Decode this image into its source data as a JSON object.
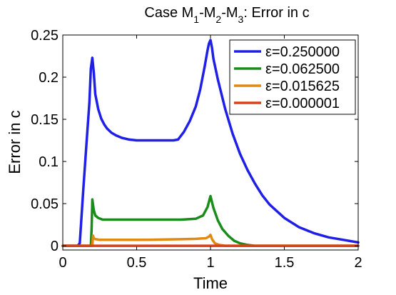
{
  "chart_data": {
    "type": "line",
    "title_parts": [
      {
        "text": "Case M",
        "sub": false
      },
      {
        "text": "1",
        "sub": true
      },
      {
        "text": "-M",
        "sub": false
      },
      {
        "text": "2",
        "sub": true
      },
      {
        "text": "-M",
        "sub": false
      },
      {
        "text": "3",
        "sub": true
      },
      {
        "text": ": Error in c",
        "sub": false
      }
    ],
    "xlabel": "Time",
    "ylabel": "Error in c",
    "xlim": [
      0,
      2
    ],
    "ylim": [
      -0.005,
      0.25
    ],
    "x_ticks": [
      "0",
      "0.5",
      "1",
      "1.5",
      "2"
    ],
    "x_tick_values": [
      0,
      0.5,
      1,
      1.5,
      2
    ],
    "y_ticks": [
      "0",
      "0.05",
      "0.1",
      "0.15",
      "0.2",
      "0.25"
    ],
    "y_tick_values": [
      0,
      0.05,
      0.1,
      0.15,
      0.2,
      0.25
    ],
    "grid": false,
    "legend_position": "top-right",
    "series": [
      {
        "name": "ε=0.250000",
        "color": "#1f1fe6",
        "x": [
          0,
          0.1,
          0.115,
          0.14,
          0.16,
          0.18,
          0.19,
          0.2,
          0.21,
          0.22,
          0.24,
          0.26,
          0.28,
          0.3,
          0.33,
          0.36,
          0.4,
          0.45,
          0.5,
          0.55,
          0.6,
          0.65,
          0.7,
          0.75,
          0.78,
          0.82,
          0.86,
          0.9,
          0.93,
          0.96,
          0.98,
          0.99,
          1.0,
          1.01,
          1.02,
          1.05,
          1.1,
          1.15,
          1.2,
          1.25,
          1.3,
          1.35,
          1.4,
          1.5,
          1.6,
          1.7,
          1.8,
          1.9,
          2.0
        ],
        "y": [
          0,
          0,
          0.003,
          0.07,
          0.12,
          0.17,
          0.21,
          0.223,
          0.205,
          0.18,
          0.162,
          0.151,
          0.144,
          0.139,
          0.134,
          0.131,
          0.128,
          0.126,
          0.125,
          0.125,
          0.125,
          0.125,
          0.125,
          0.125,
          0.126,
          0.135,
          0.148,
          0.165,
          0.185,
          0.212,
          0.232,
          0.24,
          0.244,
          0.235,
          0.222,
          0.197,
          0.162,
          0.133,
          0.109,
          0.09,
          0.074,
          0.06,
          0.049,
          0.033,
          0.022,
          0.015,
          0.01,
          0.007,
          0.004
        ]
      },
      {
        "name": "ε=0.062500",
        "color": "#1a8c1a",
        "x": [
          0,
          0.19,
          0.195,
          0.2,
          0.21,
          0.22,
          0.24,
          0.27,
          0.3,
          0.4,
          0.5,
          0.6,
          0.7,
          0.8,
          0.9,
          0.95,
          0.98,
          1.0,
          1.02,
          1.05,
          1.08,
          1.12,
          1.16,
          1.2,
          1.25,
          1.3,
          2.0
        ],
        "y": [
          0,
          0,
          0.02,
          0.055,
          0.042,
          0.036,
          0.033,
          0.031,
          0.031,
          0.031,
          0.031,
          0.031,
          0.031,
          0.031,
          0.032,
          0.036,
          0.046,
          0.059,
          0.045,
          0.03,
          0.02,
          0.012,
          0.006,
          0.003,
          0.001,
          0,
          0
        ]
      },
      {
        "name": "ε=0.015625",
        "color": "#e08a12",
        "x": [
          0,
          0.2,
          0.205,
          0.21,
          0.22,
          0.25,
          0.3,
          0.4,
          0.5,
          0.6,
          0.7,
          0.8,
          0.9,
          0.97,
          0.99,
          1.0,
          1.01,
          1.03,
          1.06,
          1.1,
          2.0
        ],
        "y": [
          0,
          0,
          0.012,
          0.009,
          0.008,
          0.007,
          0.007,
          0.007,
          0.007,
          0.0072,
          0.0075,
          0.0078,
          0.0082,
          0.009,
          0.011,
          0.013,
          0.008,
          0.003,
          0.001,
          0,
          0
        ]
      },
      {
        "name": "ε=0.000001",
        "color": "#d9401a",
        "x": [
          0,
          0.5,
          1.0,
          1.5,
          2.0
        ],
        "y": [
          0,
          0,
          0,
          0,
          0
        ]
      }
    ]
  }
}
